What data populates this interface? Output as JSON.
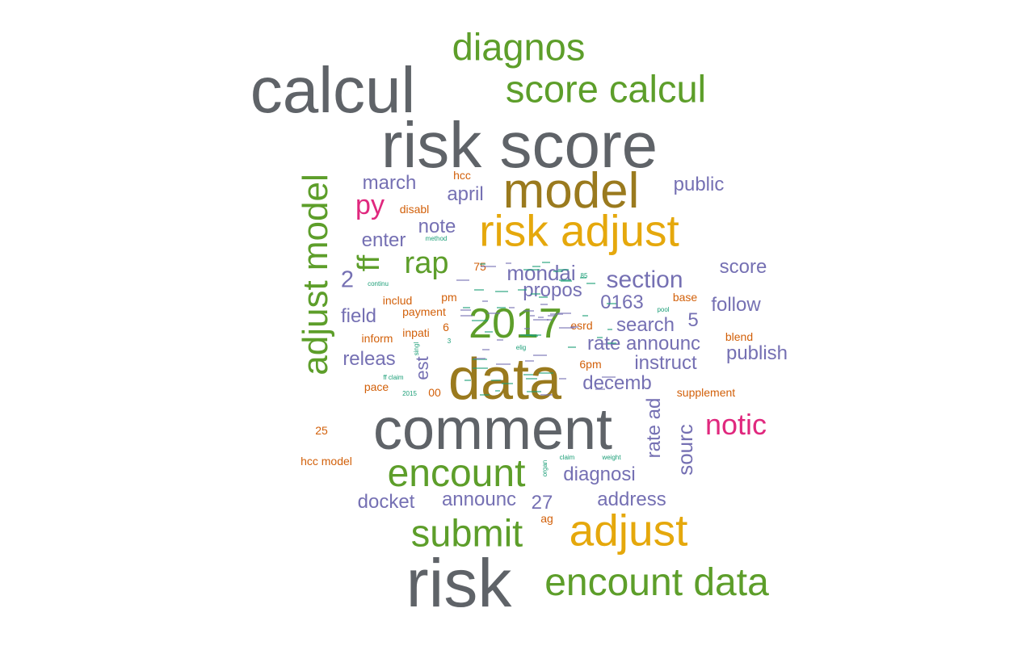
{
  "colors": {
    "gray": "#5f6368",
    "olive": "#9a7a1e",
    "gold": "#e5a80c",
    "green": "#5d9e2a",
    "purple": "#7570b3",
    "magenta": "#e0287e",
    "orange": "#d2600a",
    "teal": "#1b9e77"
  },
  "words": [
    {
      "text": "calcul",
      "color": "gray"
    },
    {
      "text": "risk score",
      "color": "gray"
    },
    {
      "text": "data",
      "color": "olive"
    },
    {
      "text": "comment",
      "color": "gray"
    },
    {
      "text": "risk",
      "color": "gray"
    },
    {
      "text": "model",
      "color": "olive"
    },
    {
      "text": "risk adjust",
      "color": "gold"
    },
    {
      "text": "adjust",
      "color": "gold"
    },
    {
      "text": "2017",
      "color": "green"
    },
    {
      "text": "diagnos",
      "color": "green"
    },
    {
      "text": "score calcul",
      "color": "green"
    },
    {
      "text": "adjust model",
      "color": "green"
    },
    {
      "text": "encount",
      "color": "green"
    },
    {
      "text": "submit",
      "color": "green"
    },
    {
      "text": "encount data",
      "color": "green"
    },
    {
      "text": "rap",
      "color": "green"
    },
    {
      "text": "ff",
      "color": "green"
    },
    {
      "text": "py",
      "color": "magenta"
    },
    {
      "text": "notic",
      "color": "magenta"
    },
    {
      "text": "march",
      "color": "purple"
    },
    {
      "text": "april",
      "color": "purple"
    },
    {
      "text": "public",
      "color": "purple"
    },
    {
      "text": "note",
      "color": "purple"
    },
    {
      "text": "enter",
      "color": "purple"
    },
    {
      "text": "score",
      "color": "purple"
    },
    {
      "text": "mondai",
      "color": "purple"
    },
    {
      "text": "section",
      "color": "purple"
    },
    {
      "text": "2",
      "color": "purple"
    },
    {
      "text": "propos",
      "color": "purple"
    },
    {
      "text": "0163",
      "color": "purple"
    },
    {
      "text": "follow",
      "color": "purple"
    },
    {
      "text": "field",
      "color": "purple"
    },
    {
      "text": "5",
      "color": "purple"
    },
    {
      "text": "search",
      "color": "purple"
    },
    {
      "text": "rate announc",
      "color": "purple"
    },
    {
      "text": "publish",
      "color": "purple"
    },
    {
      "text": "releas",
      "color": "purple"
    },
    {
      "text": "instruct",
      "color": "purple"
    },
    {
      "text": "est",
      "color": "purple"
    },
    {
      "text": "decemb",
      "color": "purple"
    },
    {
      "text": "rate ad",
      "color": "purple"
    },
    {
      "text": "sourc",
      "color": "purple"
    },
    {
      "text": "diagnosi",
      "color": "purple"
    },
    {
      "text": "docket",
      "color": "purple"
    },
    {
      "text": "announc",
      "color": "purple"
    },
    {
      "text": "27",
      "color": "purple"
    },
    {
      "text": "address",
      "color": "purple"
    },
    {
      "text": "hcc",
      "color": "orange"
    },
    {
      "text": "disabl",
      "color": "orange"
    },
    {
      "text": "75",
      "color": "orange"
    },
    {
      "text": "includ",
      "color": "orange"
    },
    {
      "text": "pm",
      "color": "orange"
    },
    {
      "text": "payment",
      "color": "orange"
    },
    {
      "text": "base",
      "color": "orange"
    },
    {
      "text": "inform",
      "color": "orange"
    },
    {
      "text": "inpati",
      "color": "orange"
    },
    {
      "text": "6",
      "color": "orange"
    },
    {
      "text": "esrd",
      "color": "orange"
    },
    {
      "text": "blend",
      "color": "orange"
    },
    {
      "text": "6pm",
      "color": "orange"
    },
    {
      "text": "pace",
      "color": "orange"
    },
    {
      "text": "00",
      "color": "orange"
    },
    {
      "text": "supplement",
      "color": "orange"
    },
    {
      "text": "25",
      "color": "orange"
    },
    {
      "text": "hcc model",
      "color": "orange"
    },
    {
      "text": "ag",
      "color": "orange"
    },
    {
      "text": "method",
      "color": "teal"
    },
    {
      "text": "continu",
      "color": "teal"
    },
    {
      "text": "85",
      "color": "teal"
    },
    {
      "text": "pool",
      "color": "teal"
    },
    {
      "text": "singl",
      "color": "teal"
    },
    {
      "text": "3",
      "color": "teal"
    },
    {
      "text": "elig",
      "color": "teal"
    },
    {
      "text": "ff claim",
      "color": "teal"
    },
    {
      "text": "2015",
      "color": "teal"
    },
    {
      "text": "claim",
      "color": "teal"
    },
    {
      "text": "weight",
      "color": "teal"
    },
    {
      "text": "organ",
      "color": "teal"
    }
  ]
}
